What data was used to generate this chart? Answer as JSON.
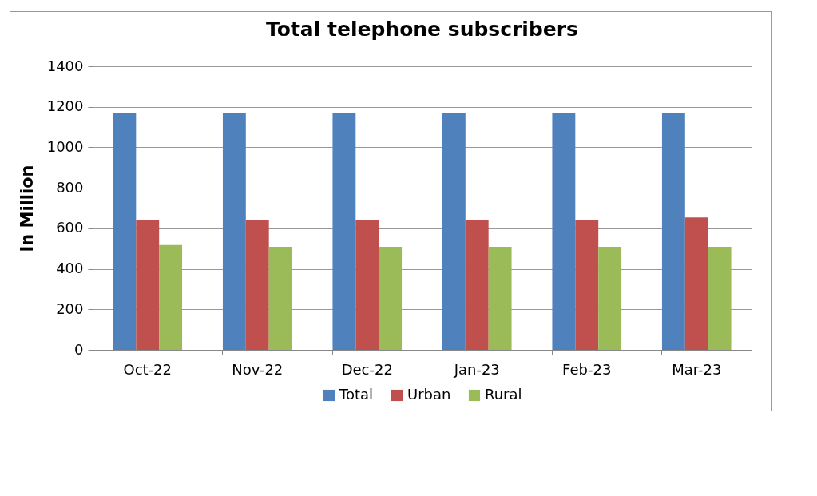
{
  "chart_data": {
    "type": "bar",
    "title": "Total telephone subscribers",
    "ylabel": "In Million",
    "categories": [
      "Oct-22",
      "Nov-22",
      "Dec-22",
      "Jan-23",
      "Feb-23",
      "Mar-23"
    ],
    "series": [
      {
        "name": "Total",
        "color": "#4f81bd",
        "values": [
          1168,
          1168,
          1168,
          1168,
          1168,
          1168
        ]
      },
      {
        "name": "Urban",
        "color": "#c0504d",
        "values": [
          643,
          643,
          643,
          643,
          643,
          654
        ]
      },
      {
        "name": "Rural",
        "color": "#9bbb59",
        "values": [
          518,
          509,
          509,
          509,
          509,
          509
        ]
      }
    ],
    "ylim": [
      0,
      1400
    ],
    "yticks": [
      0,
      200,
      400,
      600,
      800,
      1000,
      1200,
      1400
    ],
    "grid": "y",
    "legend": "bottom"
  }
}
